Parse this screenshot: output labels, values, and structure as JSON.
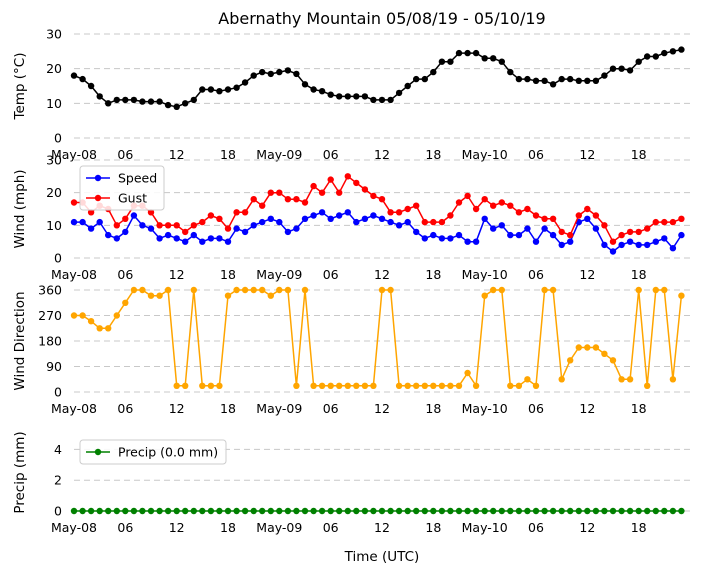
{
  "chart_data": {
    "title": "Abernathy Mountain 05/08/19 - 05/10/19",
    "xlabel": "Time (UTC)",
    "x_tick_labels": [
      "May-08",
      "06",
      "12",
      "18",
      "May-09",
      "06",
      "12",
      "18",
      "May-10",
      "06",
      "12",
      "18"
    ],
    "x_tick_hours": [
      0,
      6,
      12,
      18,
      24,
      30,
      36,
      42,
      48,
      54,
      60,
      66
    ],
    "x_range_hours": [
      0,
      72
    ],
    "panels": [
      {
        "type": "line",
        "ylabel": "Temp (°C)",
        "ylim": [
          0,
          30
        ],
        "yticks": [
          0,
          10,
          20,
          30
        ],
        "grid": true,
        "series": [
          {
            "name": "Temp",
            "color": "#000000",
            "show_in_legend": false,
            "values": [
              18,
              17,
              15,
              12,
              10,
              11,
              11,
              11,
              10.5,
              10.5,
              10.5,
              9.5,
              9,
              10,
              11,
              14,
              14,
              13.5,
              14,
              14.5,
              16,
              18,
              19,
              18.5,
              19,
              19.5,
              18.5,
              15.5,
              14,
              13.5,
              12.5,
              12,
              12,
              12,
              12,
              11,
              11,
              11,
              13,
              15,
              17,
              17,
              19,
              22,
              22,
              24.5,
              24.5,
              24.5,
              23,
              23,
              22,
              19,
              17,
              17,
              16.5,
              16.5,
              15.5,
              17,
              17,
              16.5,
              16.5,
              16.5,
              18,
              20,
              20,
              19.5,
              22,
              23.5,
              23.5,
              24.5,
              25,
              25.5
            ]
          }
        ]
      },
      {
        "type": "line",
        "ylabel": "Wind (mph)",
        "ylim": [
          0,
          30
        ],
        "yticks": [
          0,
          10,
          20,
          30
        ],
        "grid": true,
        "legend": "top-left",
        "series": [
          {
            "name": "Speed",
            "color": "#0000ff",
            "show_in_legend": true,
            "values": [
              11,
              11,
              9,
              11,
              7,
              6,
              8,
              13,
              10,
              9,
              6,
              7,
              6,
              5,
              7,
              5,
              6,
              6,
              5,
              9,
              8,
              10,
              11,
              12,
              11,
              8,
              9,
              12,
              13,
              14,
              12,
              13,
              14,
              11,
              12,
              13,
              12,
              11,
              10,
              11,
              8,
              6,
              7,
              6,
              6,
              7,
              5,
              5,
              12,
              9,
              10,
              7,
              7,
              9,
              5,
              9,
              7,
              4,
              5,
              11,
              12,
              9,
              4,
              2,
              4,
              5,
              4,
              4,
              5,
              6,
              3,
              7
            ]
          },
          {
            "name": "Gust",
            "color": "#ff0000",
            "show_in_legend": true,
            "values": [
              17,
              17,
              14,
              16,
              15,
              10,
              12,
              16,
              16,
              14,
              10,
              10,
              10,
              8,
              10,
              11,
              13,
              12,
              9,
              14,
              14,
              18,
              16,
              20,
              20,
              18,
              18,
              17,
              22,
              20,
              24,
              20,
              25,
              23,
              21,
              19,
              18,
              14,
              14,
              15,
              16,
              11,
              11,
              11,
              13,
              17,
              19,
              15,
              18,
              16,
              17,
              16,
              14,
              15,
              13,
              12,
              12,
              8,
              7,
              13,
              15,
              13,
              10,
              5,
              7,
              8,
              8,
              9,
              11,
              11,
              11,
              12
            ]
          }
        ]
      },
      {
        "type": "line",
        "ylabel": "Wind Direction",
        "ylim": [
          0,
          360
        ],
        "yticks": [
          0,
          90,
          180,
          270,
          360
        ],
        "grid": true,
        "series": [
          {
            "name": "Direction",
            "color": "#ffa500",
            "show_in_legend": false,
            "values": [
              270,
              270,
              250,
              225,
              225,
              270,
              315,
              360,
              360,
              340,
              340,
              360,
              22,
              22,
              360,
              22,
              22,
              22,
              340,
              360,
              360,
              360,
              360,
              340,
              360,
              360,
              22,
              360,
              22,
              22,
              22,
              22,
              22,
              22,
              22,
              22,
              360,
              360,
              22,
              22,
              22,
              22,
              22,
              22,
              22,
              22,
              67,
              22,
              340,
              360,
              360,
              22,
              22,
              45,
              22,
              360,
              360,
              45,
              112,
              157,
              157,
              157,
              135,
              112,
              45,
              45,
              360,
              22,
              360,
              360,
              45,
              340
            ]
          }
        ]
      },
      {
        "type": "line",
        "ylabel": "Precip (mm)",
        "ylim": [
          0,
          5
        ],
        "yticks": [
          0,
          2,
          4
        ],
        "grid": true,
        "legend": "top-left",
        "series": [
          {
            "name": "Precip (0.0 mm)",
            "color": "#008000",
            "show_in_legend": true,
            "values": [
              0,
              0,
              0,
              0,
              0,
              0,
              0,
              0,
              0,
              0,
              0,
              0,
              0,
              0,
              0,
              0,
              0,
              0,
              0,
              0,
              0,
              0,
              0,
              0,
              0,
              0,
              0,
              0,
              0,
              0,
              0,
              0,
              0,
              0,
              0,
              0,
              0,
              0,
              0,
              0,
              0,
              0,
              0,
              0,
              0,
              0,
              0,
              0,
              0,
              0,
              0,
              0,
              0,
              0,
              0,
              0,
              0,
              0,
              0,
              0,
              0,
              0,
              0,
              0,
              0,
              0,
              0,
              0,
              0,
              0,
              0,
              0
            ]
          }
        ]
      }
    ]
  }
}
